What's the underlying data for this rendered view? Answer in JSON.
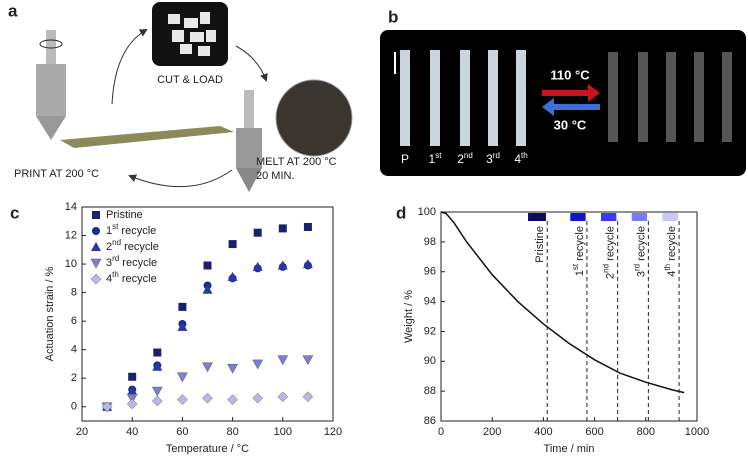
{
  "panel_a": {
    "letter": "a",
    "cut": "CUT & LOAD",
    "melt": [
      "MELT AT 200 °C",
      "20 MIN."
    ],
    "print": "PRINT AT 200 °C"
  },
  "panel_b": {
    "letter": "b",
    "hot": "110 °C",
    "cold": "30 °C",
    "labels": [
      {
        "text": "P"
      },
      {
        "text": "1",
        "sup": "st"
      },
      {
        "text": "2",
        "sup": "nd"
      },
      {
        "text": "3",
        "sup": "rd"
      },
      {
        "text": "4",
        "sup": "th"
      }
    ]
  },
  "chart_data": [
    {
      "type": "scatter",
      "letter": "c",
      "x_label": "Temperature / °C",
      "y_label": "Actuation strain / %",
      "x": [
        30,
        40,
        50,
        60,
        70,
        80,
        90,
        100,
        110
      ],
      "xlim": [
        20,
        120
      ],
      "xticks": [
        20,
        40,
        60,
        80,
        100,
        120
      ],
      "ylim": [
        -1,
        14
      ],
      "yticks": [
        0,
        2,
        4,
        6,
        8,
        10,
        12,
        14
      ],
      "legend": "upper left",
      "series": [
        {
          "name": "Pristine",
          "color": "#1a1f6e",
          "marker": "square",
          "values": [
            0,
            2.1,
            3.8,
            7.0,
            9.9,
            11.4,
            12.2,
            12.5,
            12.6
          ]
        },
        {
          "name": "1st recycle",
          "color": "#1f2a8a",
          "marker": "circle",
          "values": [
            0,
            1.2,
            2.9,
            5.8,
            8.5,
            9.0,
            9.7,
            9.8,
            9.9
          ]
        },
        {
          "name": "2nd recycle",
          "color": "#2a35a8",
          "marker": "triangle-up",
          "values": [
            0,
            1.1,
            2.8,
            5.6,
            8.2,
            9.1,
            9.8,
            9.9,
            10.0
          ]
        },
        {
          "name": "3rd recycle",
          "color": "#7b7fd6",
          "marker": "triangle-down",
          "values": [
            0,
            0.6,
            1.1,
            2.1,
            2.8,
            2.7,
            3.0,
            3.3,
            3.3
          ]
        },
        {
          "name": "4th recycle",
          "color": "#b8b8e6",
          "marker": "diamond",
          "values": [
            0,
            0.2,
            0.4,
            0.5,
            0.6,
            0.5,
            0.6,
            0.7,
            0.7
          ]
        }
      ]
    },
    {
      "type": "line",
      "letter": "d",
      "x_label": "Time / min",
      "y_label": "Weight / %",
      "color": "#111111",
      "x": [
        0,
        20,
        50,
        100,
        200,
        300,
        400,
        500,
        600,
        700,
        800,
        900,
        950
      ],
      "values": [
        100,
        99.9,
        99.3,
        98.0,
        95.8,
        94.0,
        92.5,
        91.2,
        90.1,
        89.2,
        88.6,
        88.1,
        87.9
      ],
      "xlim": [
        0,
        1000
      ],
      "xticks": [
        0,
        200,
        400,
        600,
        800,
        1000
      ],
      "ylim": [
        86,
        100
      ],
      "yticks": [
        86,
        88,
        90,
        92,
        94,
        96,
        98,
        100
      ],
      "markers": [
        {
          "x": 415,
          "label": "Pristine",
          "color": "#0a0a5e",
          "band": [
            340,
            410
          ]
        },
        {
          "x": 570,
          "label": "1st recycle",
          "color": "#1414c8",
          "band": [
            505,
            565
          ]
        },
        {
          "x": 690,
          "label": "2nd recycle",
          "color": "#3a3aff",
          "band": [
            625,
            685
          ]
        },
        {
          "x": 810,
          "label": "3rd recycle",
          "color": "#7a7aff",
          "band": [
            745,
            805
          ]
        },
        {
          "x": 930,
          "label": "4th recycle",
          "color": "#c8c8ff",
          "band": [
            865,
            925
          ]
        }
      ]
    }
  ]
}
